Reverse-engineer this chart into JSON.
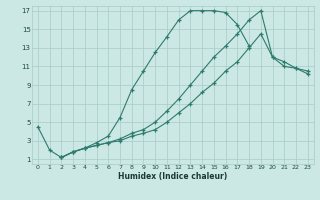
{
  "xlabel": "Humidex (Indice chaleur)",
  "bg_color": "#cce8e4",
  "grid_color": "#a8ccc8",
  "line_color": "#2e7b6e",
  "xlim": [
    -0.5,
    23.5
  ],
  "ylim": [
    0.5,
    17.5
  ],
  "xticks": [
    0,
    1,
    2,
    3,
    4,
    5,
    6,
    7,
    8,
    9,
    10,
    11,
    12,
    13,
    14,
    15,
    16,
    17,
    18,
    19,
    20,
    21,
    22,
    23
  ],
  "yticks": [
    1,
    3,
    5,
    7,
    9,
    11,
    13,
    15,
    17
  ],
  "line1_x": [
    0,
    1,
    2,
    3,
    4,
    5,
    6,
    7,
    8,
    9,
    10,
    11,
    12,
    13,
    14,
    15,
    16,
    17,
    18
  ],
  "line1_y": [
    4.5,
    2.0,
    1.2,
    1.8,
    2.2,
    2.8,
    3.5,
    5.5,
    8.5,
    10.5,
    12.5,
    14.2,
    16.0,
    17.0,
    17.0,
    17.0,
    16.8,
    15.5,
    13.2
  ],
  "line2_x": [
    2,
    3,
    4,
    5,
    6,
    7,
    8,
    9,
    10,
    11,
    12,
    13,
    14,
    15,
    16,
    17,
    18,
    19,
    20,
    21,
    22,
    23
  ],
  "line2_y": [
    1.2,
    1.8,
    2.2,
    2.5,
    2.8,
    3.2,
    3.8,
    4.2,
    5.0,
    6.2,
    7.5,
    9.0,
    10.5,
    12.0,
    13.2,
    14.5,
    16.0,
    17.0,
    12.0,
    11.0,
    10.8,
    10.5
  ],
  "line3_x": [
    2,
    3,
    4,
    5,
    6,
    7,
    8,
    9,
    10,
    11,
    12,
    13,
    14,
    15,
    16,
    17,
    18,
    19,
    20,
    21,
    22,
    23
  ],
  "line3_y": [
    1.2,
    1.8,
    2.2,
    2.5,
    2.8,
    3.0,
    3.5,
    3.8,
    4.2,
    5.0,
    6.0,
    7.0,
    8.2,
    9.2,
    10.5,
    11.5,
    13.0,
    14.5,
    12.0,
    11.5,
    10.8,
    10.2
  ]
}
